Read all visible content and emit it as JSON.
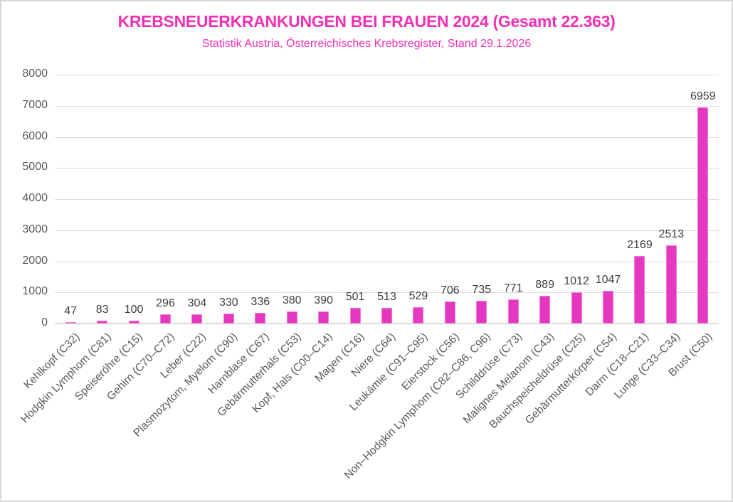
{
  "page": {
    "background": "#ffffff",
    "frame_border_color": "#d7d7d7"
  },
  "chart_data": {
    "type": "bar",
    "title": "KREBSNEUERKRANKUNGEN BEI FRAUEN 2024 (Gesamt 22.363)",
    "subtitle": "Statistik Austria, Österreichisches Krebsregister, Stand 29.1.2026",
    "categories": [
      "Kehlkopf (C32)",
      "Hodgkin Lymphom (C81)",
      "Speiseröhre (C15)",
      "Gehirn (C70–C72)",
      "Leber (C22)",
      "Plasmozytom, Myelom (C90)",
      "Harnblase (C67)",
      "Gebärmutterhals (C53)",
      "Kopf, Hals (C00–C14)",
      "Magen (C16)",
      "Niere (C64)",
      "Leukämie (C91–C95)",
      "Eierstock (C56)",
      "Non–Hodgkin Lymphom (C82–C86, C96)",
      "Schilddrüse (C73)",
      "Malignes Melanom (C43)",
      "Bauchspeicheldrüse (C25)",
      "Gebärmutterkörper (C54)",
      "Darm (C18–C21)",
      "Lunge (C33–C34)",
      "Brust (C50)"
    ],
    "values": [
      47,
      83,
      100,
      296,
      304,
      330,
      336,
      380,
      390,
      501,
      513,
      529,
      706,
      735,
      771,
      889,
      1012,
      1047,
      2169,
      2513,
      6959
    ],
    "xlabel": "",
    "ylabel": "",
    "ylim": [
      0,
      8000
    ],
    "yticks": [
      0,
      1000,
      2000,
      3000,
      4000,
      5000,
      6000,
      7000,
      8000
    ],
    "grid": "on",
    "legend": "none",
    "colors": {
      "accent_pink": "#F230B4",
      "bar_fill": "#E637C1",
      "bar_edge": "#F07FD4",
      "gridline": "#DBDBDB",
      "axis_labels": "#595959",
      "value_labels": "#3F3F3F"
    }
  }
}
